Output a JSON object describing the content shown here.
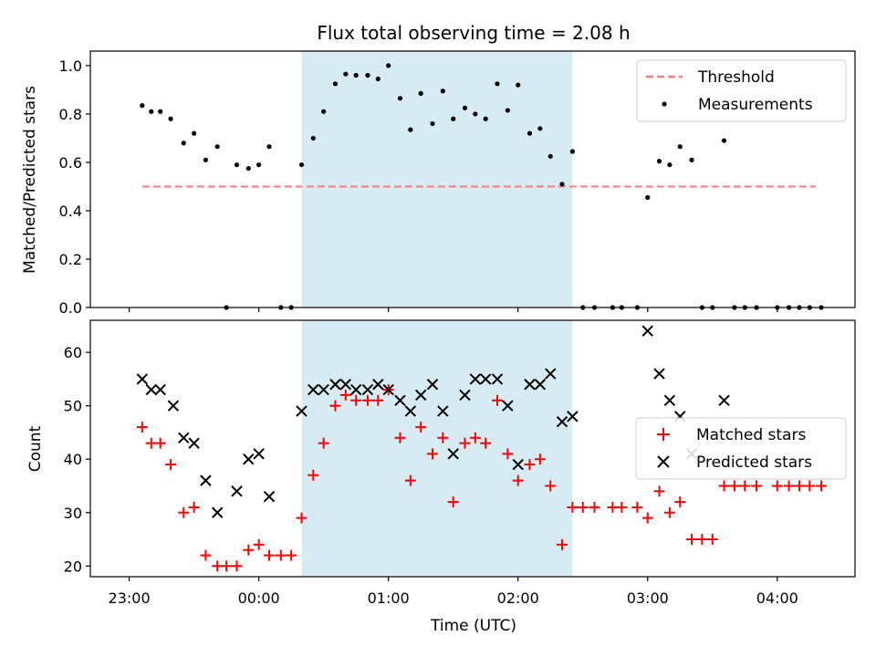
{
  "title": "Flux total observing time = 2.08 h",
  "x_axis": {
    "label": "Time (UTC)",
    "tick_labels": [
      "23:00",
      "00:00",
      "01:00",
      "02:00",
      "03:00",
      "04:00"
    ]
  },
  "colors": {
    "threshold": "#ff7f7f",
    "measurements": "#000000",
    "matched": "#ff0000",
    "predicted": "#000000",
    "observing_span": "#add8e6"
  },
  "chart_data": [
    {
      "type": "scatter",
      "ylabel": "Matched/Predicted stars",
      "ylim": [
        0,
        1.06
      ],
      "yticks": [
        "0.0",
        "0.2",
        "0.4",
        "0.6",
        "0.8",
        "1.0"
      ],
      "xlim_hours": [
        -1.3,
        4.6
      ],
      "observing_span_hours": [
        0.33,
        2.42
      ],
      "legend": {
        "position": "upper right",
        "entries": [
          "Threshold",
          "Measurements"
        ]
      },
      "threshold": {
        "name": "Threshold",
        "y": 0.5,
        "x_range_hours": [
          -0.9,
          4.3
        ]
      },
      "series": [
        {
          "name": "Measurements",
          "points": [
            [
              -0.9,
              0.835
            ],
            [
              -0.83,
              0.81
            ],
            [
              -0.76,
              0.81
            ],
            [
              -0.68,
              0.78
            ],
            [
              -0.58,
              0.68
            ],
            [
              -0.5,
              0.72
            ],
            [
              -0.41,
              0.61
            ],
            [
              -0.32,
              0.665
            ],
            [
              -0.25,
              0.0
            ],
            [
              -0.17,
              0.59
            ],
            [
              -0.08,
              0.575
            ],
            [
              0.0,
              0.59
            ],
            [
              0.08,
              0.665
            ],
            [
              0.17,
              0.0
            ],
            [
              0.25,
              0.0
            ],
            [
              0.33,
              0.59
            ],
            [
              0.42,
              0.7
            ],
            [
              0.5,
              0.81
            ],
            [
              0.59,
              0.925
            ],
            [
              0.67,
              0.965
            ],
            [
              0.75,
              0.96
            ],
            [
              0.84,
              0.96
            ],
            [
              0.92,
              0.945
            ],
            [
              1.0,
              1.0
            ],
            [
              1.09,
              0.865
            ],
            [
              1.17,
              0.735
            ],
            [
              1.25,
              0.885
            ],
            [
              1.34,
              0.76
            ],
            [
              1.42,
              0.895
            ],
            [
              1.5,
              0.78
            ],
            [
              1.59,
              0.825
            ],
            [
              1.67,
              0.8
            ],
            [
              1.75,
              0.78
            ],
            [
              1.84,
              0.925
            ],
            [
              1.92,
              0.815
            ],
            [
              2.0,
              0.92
            ],
            [
              2.09,
              0.72
            ],
            [
              2.17,
              0.74
            ],
            [
              2.25,
              0.625
            ],
            [
              2.34,
              0.51
            ],
            [
              2.42,
              0.645
            ],
            [
              2.5,
              0.0
            ],
            [
              2.59,
              0.0
            ],
            [
              2.73,
              0.0
            ],
            [
              2.8,
              0.0
            ],
            [
              2.92,
              0.0
            ],
            [
              3.0,
              0.455
            ],
            [
              3.09,
              0.605
            ],
            [
              3.17,
              0.59
            ],
            [
              3.25,
              0.665
            ],
            [
              3.34,
              0.61
            ],
            [
              3.42,
              0.0
            ],
            [
              3.5,
              0.0
            ],
            [
              3.59,
              0.69
            ],
            [
              3.67,
              0.0
            ],
            [
              3.75,
              0.0
            ],
            [
              3.84,
              0.0
            ],
            [
              4.0,
              0.0
            ],
            [
              4.09,
              0.0
            ],
            [
              4.17,
              0.0
            ],
            [
              4.25,
              0.0
            ],
            [
              4.34,
              0.0
            ]
          ]
        }
      ]
    },
    {
      "type": "scatter",
      "ylabel": "Count",
      "ylim": [
        18,
        66
      ],
      "yticks": [
        "20",
        "30",
        "40",
        "50",
        "60"
      ],
      "xlim_hours": [
        -1.3,
        4.6
      ],
      "observing_span_hours": [
        0.33,
        2.42
      ],
      "legend": {
        "position": "center right",
        "entries": [
          "Matched stars",
          "Predicted stars"
        ]
      },
      "series": [
        {
          "name": "Matched stars",
          "marker": "plus",
          "points": [
            [
              -0.9,
              46
            ],
            [
              -0.83,
              43
            ],
            [
              -0.76,
              43
            ],
            [
              -0.68,
              39
            ],
            [
              -0.58,
              30
            ],
            [
              -0.5,
              31
            ],
            [
              -0.41,
              22
            ],
            [
              -0.32,
              20
            ],
            [
              -0.25,
              20
            ],
            [
              -0.17,
              20
            ],
            [
              -0.08,
              23
            ],
            [
              0.0,
              24
            ],
            [
              0.08,
              22
            ],
            [
              0.17,
              22
            ],
            [
              0.25,
              22
            ],
            [
              0.33,
              29
            ],
            [
              0.42,
              37
            ],
            [
              0.5,
              43
            ],
            [
              0.59,
              50
            ],
            [
              0.67,
              52
            ],
            [
              0.75,
              51
            ],
            [
              0.84,
              51
            ],
            [
              0.92,
              51
            ],
            [
              1.0,
              53
            ],
            [
              1.09,
              44
            ],
            [
              1.17,
              36
            ],
            [
              1.25,
              46
            ],
            [
              1.34,
              41
            ],
            [
              1.42,
              44
            ],
            [
              1.5,
              32
            ],
            [
              1.59,
              43
            ],
            [
              1.67,
              44
            ],
            [
              1.75,
              43
            ],
            [
              1.84,
              51
            ],
            [
              1.92,
              41
            ],
            [
              2.0,
              36
            ],
            [
              2.09,
              39
            ],
            [
              2.17,
              40
            ],
            [
              2.25,
              35
            ],
            [
              2.34,
              24
            ],
            [
              2.42,
              31
            ],
            [
              2.5,
              31
            ],
            [
              2.59,
              31
            ],
            [
              2.73,
              31
            ],
            [
              2.8,
              31
            ],
            [
              2.92,
              31
            ],
            [
              3.0,
              29
            ],
            [
              3.09,
              34
            ],
            [
              3.17,
              30
            ],
            [
              3.25,
              32
            ],
            [
              3.34,
              25
            ],
            [
              3.42,
              25
            ],
            [
              3.5,
              25
            ],
            [
              3.59,
              35
            ],
            [
              3.67,
              35
            ],
            [
              3.75,
              35
            ],
            [
              3.84,
              35
            ],
            [
              4.0,
              35
            ],
            [
              4.09,
              35
            ],
            [
              4.17,
              35
            ],
            [
              4.25,
              35
            ],
            [
              4.34,
              35
            ]
          ]
        },
        {
          "name": "Predicted stars",
          "marker": "x",
          "points": [
            [
              -0.9,
              55
            ],
            [
              -0.83,
              53
            ],
            [
              -0.76,
              53
            ],
            [
              -0.66,
              50
            ],
            [
              -0.58,
              44
            ],
            [
              -0.5,
              43
            ],
            [
              -0.41,
              36
            ],
            [
              -0.32,
              30
            ],
            [
              -0.17,
              34
            ],
            [
              -0.08,
              40
            ],
            [
              0.0,
              41
            ],
            [
              0.08,
              33
            ],
            [
              0.33,
              49
            ],
            [
              0.42,
              53
            ],
            [
              0.5,
              53
            ],
            [
              0.59,
              54
            ],
            [
              0.67,
              54
            ],
            [
              0.75,
              53
            ],
            [
              0.84,
              53
            ],
            [
              0.92,
              54
            ],
            [
              1.0,
              53
            ],
            [
              1.09,
              51
            ],
            [
              1.17,
              49
            ],
            [
              1.25,
              52
            ],
            [
              1.34,
              54
            ],
            [
              1.42,
              49
            ],
            [
              1.5,
              41
            ],
            [
              1.59,
              52
            ],
            [
              1.67,
              55
            ],
            [
              1.75,
              55
            ],
            [
              1.84,
              55
            ],
            [
              1.92,
              50
            ],
            [
              2.0,
              39
            ],
            [
              2.09,
              54
            ],
            [
              2.17,
              54
            ],
            [
              2.25,
              56
            ],
            [
              2.34,
              47
            ],
            [
              2.42,
              48
            ],
            [
              3.0,
              64
            ],
            [
              3.09,
              56
            ],
            [
              3.17,
              51
            ],
            [
              3.25,
              48
            ],
            [
              3.34,
              41
            ],
            [
              3.59,
              51
            ]
          ]
        }
      ]
    }
  ]
}
